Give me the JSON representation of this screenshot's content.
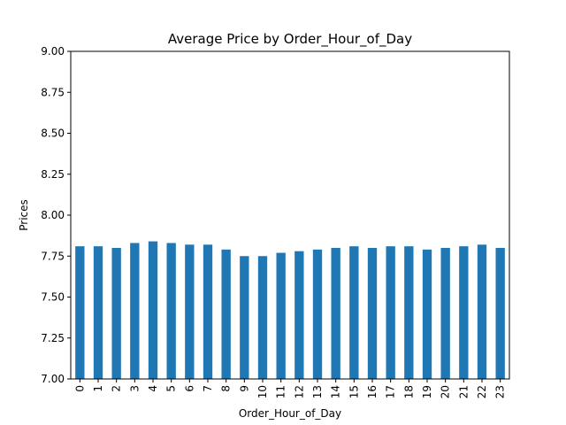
{
  "chart_data": {
    "type": "bar",
    "title": "Average Price by Order_Hour_of_Day",
    "xlabel": "Order_Hour_of_Day",
    "ylabel": "Prices",
    "ylim": [
      7.0,
      9.0
    ],
    "yticks": [
      "7.00",
      "7.25",
      "7.50",
      "7.75",
      "8.00",
      "8.25",
      "8.50",
      "8.75",
      "9.00"
    ],
    "categories": [
      "0",
      "1",
      "2",
      "3",
      "4",
      "5",
      "6",
      "7",
      "8",
      "9",
      "10",
      "11",
      "12",
      "13",
      "14",
      "15",
      "16",
      "17",
      "18",
      "19",
      "20",
      "21",
      "22",
      "23"
    ],
    "values": [
      7.81,
      7.81,
      7.8,
      7.83,
      7.84,
      7.83,
      7.82,
      7.82,
      7.79,
      7.75,
      7.75,
      7.77,
      7.78,
      7.79,
      7.8,
      7.81,
      7.8,
      7.81,
      7.81,
      7.79,
      7.8,
      7.81,
      7.82,
      7.8
    ],
    "bar_color": "#1f77b4",
    "grid": false,
    "legend": "none"
  }
}
